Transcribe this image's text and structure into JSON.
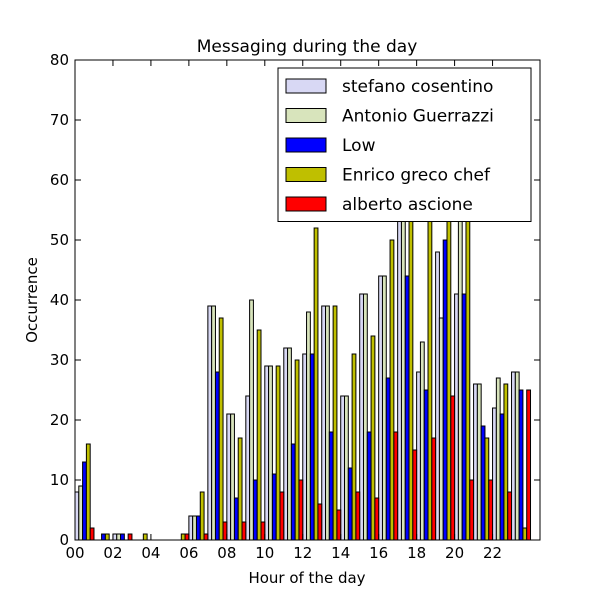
{
  "chart_data": {
    "type": "bar",
    "title": "Messaging during the day",
    "xlabel": "Hour of the day",
    "ylabel": "Occurrence",
    "ylim": [
      0,
      80
    ],
    "xlim": [
      0,
      24.5
    ],
    "yticks": [
      0,
      10,
      20,
      30,
      40,
      50,
      60,
      70,
      80
    ],
    "xticks": [
      0,
      2,
      4,
      6,
      8,
      10,
      12,
      14,
      16,
      18,
      20,
      22
    ],
    "xtick_labels": [
      "00",
      "02",
      "04",
      "06",
      "08",
      "10",
      "12",
      "14",
      "16",
      "18",
      "20",
      "22"
    ],
    "grid": false,
    "legend_position": "top-right",
    "hours": [
      0,
      1,
      2,
      3,
      4,
      5,
      6,
      7,
      8,
      9,
      10,
      11,
      12,
      13,
      14,
      15,
      16,
      17,
      18,
      19,
      20,
      21,
      22,
      23
    ],
    "series": [
      {
        "name": "stefano cosentino",
        "color": "#d8d8f4",
        "values": [
          8,
          0,
          1,
          0,
          0,
          0,
          4,
          39,
          21,
          24,
          29,
          32,
          31,
          39,
          24,
          41,
          44,
          58,
          28,
          48,
          41,
          26,
          22,
          28
        ]
      },
      {
        "name": "Antonio Guerrazzi",
        "color": "#d8e4bc",
        "values": [
          9,
          0,
          1,
          0,
          0,
          0,
          4,
          39,
          21,
          40,
          29,
          32,
          38,
          39,
          24,
          41,
          44,
          58,
          33,
          37,
          56,
          26,
          27,
          28
        ]
      },
      {
        "name": "Low",
        "color": "#0000ff",
        "values": [
          13,
          1,
          1,
          0,
          0,
          0,
          4,
          28,
          7,
          10,
          11,
          16,
          31,
          18,
          12,
          18,
          27,
          44,
          25,
          50,
          41,
          19,
          21,
          25
        ]
      },
      {
        "name": "Enrico greco chef",
        "color": "#bfbf00",
        "values": [
          16,
          1,
          0,
          1,
          0,
          1,
          8,
          37,
          17,
          35,
          29,
          30,
          52,
          39,
          31,
          34,
          50,
          58,
          58,
          58,
          58,
          17,
          26,
          2
        ]
      },
      {
        "name": "alberto ascione",
        "color": "#ff0000",
        "values": [
          2,
          0,
          1,
          0,
          0,
          1,
          1,
          3,
          3,
          3,
          8,
          10,
          6,
          5,
          8,
          7,
          18,
          15,
          17,
          24,
          10,
          10,
          8,
          25
        ]
      }
    ]
  }
}
